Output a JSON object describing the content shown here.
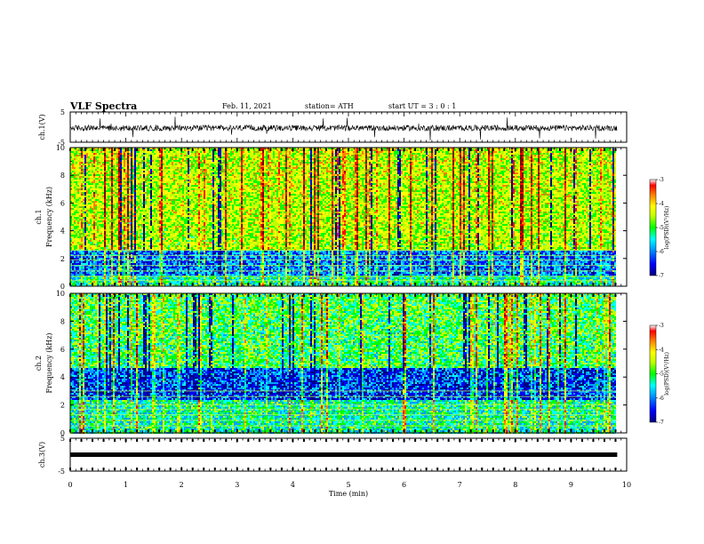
{
  "chart_data": {
    "type": "heatmap",
    "header": {
      "title": "VLF Spectra",
      "date": "Feb. 11, 2021",
      "station": "station= ATH",
      "start": "start  UT =  3 : 0  : 1"
    },
    "x": {
      "label": "Time  (min)",
      "range": [
        0,
        10
      ],
      "ticks": [
        "0",
        "1",
        "2",
        "3",
        "4",
        "5",
        "6",
        "7",
        "8",
        "9",
        "10"
      ],
      "data_end": 9.83
    },
    "panels": [
      {
        "id": "ch1-voltage",
        "kind": "waveform",
        "ylabel": "ch.1(V)",
        "ylim": [
          -5,
          5
        ],
        "yticks": [
          "5",
          "-5"
        ],
        "baseline": -0.3,
        "amplitude": 1.2
      },
      {
        "id": "ch1-spectrogram",
        "kind": "spectrogram",
        "ylabel": [
          "ch.1",
          "Frequency  (kHz)"
        ],
        "ylim": [
          0,
          10
        ],
        "yticks": [
          "0",
          "2",
          "4",
          "6",
          "8",
          "10"
        ],
        "colorbar": {
          "label": "log(PSD)(V²/Hz)",
          "range": [
            -7,
            -3
          ],
          "ticks": [
            "-3",
            "-4",
            "-5",
            "-6",
            "-7"
          ]
        },
        "quiet_band_khz": [
          0.8,
          2.5
        ],
        "hum_lines_khz": [
          0.4,
          0.7,
          1.1,
          1.5,
          1.9,
          2.2,
          2.6
        ],
        "overall_level": "high"
      },
      {
        "id": "ch2-spectrogram",
        "kind": "spectrogram",
        "ylabel": [
          "ch.2",
          "Frequency  (kHz)"
        ],
        "ylim": [
          0,
          10
        ],
        "yticks": [
          "0",
          "2",
          "4",
          "6",
          "8",
          "10"
        ],
        "colorbar": {
          "label": "log(PSD)(V²/Hz)",
          "range": [
            -7,
            -3
          ],
          "ticks": [
            "-3",
            "-4",
            "-5",
            "-6",
            "-7"
          ]
        },
        "quiet_band_khz": [
          2.3,
          4.6
        ],
        "hum_lines_khz": [
          0.5,
          0.9,
          1.3,
          1.7,
          2.0,
          2.6,
          3.0
        ],
        "overall_level": "medium"
      },
      {
        "id": "ch3-voltage",
        "kind": "waveform",
        "ylabel": "ch.3(V)",
        "ylim": [
          -5,
          5
        ],
        "yticks": [
          "5",
          "-5"
        ],
        "baseline": 0,
        "amplitude": 0.3
      }
    ],
    "colormap": [
      "#000080",
      "#0000ff",
      "#00a0ff",
      "#00ffff",
      "#00ff00",
      "#c0ff00",
      "#ffff00",
      "#ff8000",
      "#ff0000",
      "#800000"
    ]
  }
}
